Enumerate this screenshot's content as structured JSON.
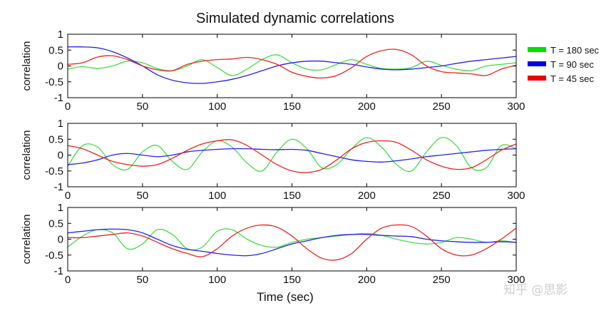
{
  "chart_data": {
    "type": "line",
    "title": "Simulated dynamic correlations",
    "xlabel": "Time (sec)",
    "ylabel": "correlation",
    "xlim": [
      0,
      300
    ],
    "ylim": [
      -1,
      1
    ],
    "xticks": [
      0,
      50,
      100,
      150,
      200,
      250,
      300
    ],
    "yticks": [
      -1,
      -0.5,
      0,
      0.5,
      1
    ],
    "legend": {
      "placement": "right",
      "entries": [
        {
          "label": "T  = 180 sec",
          "color": "#00e000"
        },
        {
          "label": "T  = 90 sec",
          "color": "#0000ee"
        },
        {
          "label": "T  = 45 sec",
          "color": "#ee0000"
        }
      ]
    },
    "panels": [
      {
        "series": [
          {
            "name": "T  = 180 sec",
            "color": "#44dd44",
            "x": [
              0,
              10,
              20,
              30,
              40,
              50,
              60,
              70,
              80,
              90,
              100,
              110,
              120,
              130,
              140,
              150,
              160,
              170,
              180,
              190,
              200,
              210,
              220,
              230,
              240,
              250,
              260,
              270,
              280,
              290,
              300
            ],
            "y": [
              -0.1,
              -0.02,
              -0.08,
              0.0,
              0.15,
              0.1,
              -0.08,
              -0.15,
              0.0,
              0.2,
              -0.05,
              -0.3,
              -0.1,
              0.2,
              0.35,
              0.1,
              -0.1,
              -0.12,
              0.05,
              0.2,
              0.05,
              -0.08,
              -0.1,
              -0.05,
              0.15,
              0.02,
              -0.1,
              -0.15,
              0.0,
              0.05,
              0.1
            ]
          },
          {
            "name": "T  = 90 sec",
            "color": "#2222ee",
            "x": [
              0,
              10,
              20,
              30,
              40,
              50,
              60,
              70,
              80,
              90,
              100,
              110,
              120,
              130,
              140,
              150,
              160,
              170,
              180,
              190,
              200,
              210,
              220,
              230,
              240,
              250,
              260,
              270,
              280,
              290,
              300
            ],
            "y": [
              0.6,
              0.6,
              0.57,
              0.45,
              0.25,
              0.0,
              -0.28,
              -0.45,
              -0.53,
              -0.55,
              -0.5,
              -0.42,
              -0.3,
              -0.15,
              0.0,
              0.1,
              0.15,
              0.15,
              0.1,
              0.05,
              -0.03,
              -0.1,
              -0.12,
              -0.1,
              -0.05,
              0.0,
              0.08,
              0.15,
              0.2,
              0.25,
              0.3
            ]
          },
          {
            "name": "T  = 45 sec",
            "color": "#ee2222",
            "x": [
              0,
              10,
              20,
              30,
              40,
              50,
              60,
              70,
              80,
              90,
              100,
              110,
              120,
              130,
              140,
              150,
              160,
              170,
              180,
              190,
              200,
              210,
              220,
              230,
              240,
              250,
              260,
              270,
              280,
              290,
              300
            ],
            "y": [
              0.05,
              0.1,
              0.28,
              0.32,
              0.2,
              0.0,
              -0.12,
              -0.15,
              0.05,
              0.15,
              0.2,
              0.22,
              0.27,
              0.2,
              0.05,
              -0.2,
              -0.33,
              -0.38,
              -0.3,
              -0.05,
              0.3,
              0.48,
              0.52,
              0.35,
              0.0,
              -0.18,
              -0.22,
              -0.25,
              -0.3,
              -0.1,
              0.02
            ]
          }
        ]
      },
      {
        "series": [
          {
            "name": "T  = 180 sec",
            "color": "#44dd44",
            "x": [
              0,
              10,
              20,
              30,
              40,
              50,
              60,
              70,
              80,
              90,
              100,
              110,
              120,
              130,
              140,
              150,
              160,
              170,
              180,
              190,
              200,
              210,
              220,
              230,
              240,
              250,
              260,
              270,
              280,
              290,
              300
            ],
            "y": [
              -0.35,
              0.3,
              0.25,
              -0.3,
              -0.45,
              0.1,
              0.3,
              -0.2,
              -0.45,
              0.1,
              0.45,
              0.25,
              -0.25,
              -0.5,
              0.1,
              0.5,
              0.2,
              -0.4,
              -0.3,
              0.2,
              0.55,
              0.25,
              -0.3,
              -0.5,
              0.1,
              0.55,
              0.3,
              -0.4,
              -0.4,
              0.3,
              0.2
            ]
          },
          {
            "name": "T  = 90 sec",
            "color": "#2222ee",
            "x": [
              0,
              10,
              20,
              30,
              40,
              50,
              60,
              70,
              80,
              90,
              100,
              110,
              120,
              130,
              140,
              150,
              160,
              170,
              180,
              190,
              200,
              210,
              220,
              230,
              240,
              250,
              260,
              270,
              280,
              290,
              300
            ],
            "y": [
              -0.3,
              -0.25,
              -0.15,
              0.0,
              0.05,
              0.0,
              -0.05,
              0.0,
              0.1,
              0.15,
              0.18,
              0.2,
              0.2,
              0.18,
              0.17,
              0.18,
              0.15,
              0.05,
              -0.05,
              -0.15,
              -0.2,
              -0.22,
              -0.18,
              -0.12,
              -0.05,
              0.0,
              0.05,
              0.1,
              0.15,
              0.18,
              0.2
            ]
          },
          {
            "name": "T  = 45 sec",
            "color": "#ee2222",
            "x": [
              0,
              10,
              20,
              30,
              40,
              50,
              60,
              70,
              80,
              90,
              100,
              110,
              120,
              130,
              140,
              150,
              160,
              170,
              180,
              190,
              200,
              210,
              220,
              230,
              240,
              250,
              260,
              270,
              280,
              290,
              300
            ],
            "y": [
              0.3,
              0.2,
              0.0,
              -0.2,
              -0.3,
              -0.35,
              -0.3,
              -0.1,
              0.15,
              0.35,
              0.45,
              0.48,
              0.3,
              0.0,
              -0.3,
              -0.5,
              -0.55,
              -0.45,
              -0.15,
              0.2,
              0.4,
              0.45,
              0.4,
              0.15,
              -0.15,
              -0.35,
              -0.45,
              -0.4,
              -0.15,
              0.15,
              0.35
            ]
          }
        ]
      },
      {
        "series": [
          {
            "name": "T  = 180 sec",
            "color": "#44dd44",
            "x": [
              0,
              10,
              20,
              30,
              40,
              50,
              60,
              70,
              80,
              90,
              100,
              110,
              120,
              130,
              140,
              150,
              160,
              170,
              180,
              190,
              200,
              210,
              220,
              230,
              240,
              250,
              260,
              270,
              280,
              290,
              300
            ],
            "y": [
              -0.25,
              0.1,
              0.3,
              0.2,
              -0.3,
              -0.15,
              0.3,
              0.15,
              -0.3,
              -0.25,
              0.25,
              0.3,
              0.0,
              -0.2,
              -0.25,
              -0.1,
              0.0,
              0.05,
              0.1,
              0.15,
              0.18,
              0.12,
              0.0,
              -0.1,
              -0.15,
              -0.1,
              0.05,
              0.0,
              -0.1,
              -0.05,
              -0.1
            ]
          },
          {
            "name": "T  = 90 sec",
            "color": "#2222ee",
            "x": [
              0,
              10,
              20,
              30,
              40,
              50,
              60,
              70,
              80,
              90,
              100,
              110,
              120,
              130,
              140,
              150,
              160,
              170,
              180,
              190,
              200,
              210,
              220,
              230,
              240,
              250,
              260,
              270,
              280,
              290,
              300
            ],
            "y": [
              0.2,
              0.25,
              0.3,
              0.32,
              0.3,
              0.2,
              0.0,
              -0.2,
              -0.32,
              -0.38,
              -0.45,
              -0.5,
              -0.52,
              -0.45,
              -0.3,
              -0.15,
              -0.05,
              0.05,
              0.12,
              0.15,
              0.15,
              0.12,
              0.1,
              0.08,
              0.0,
              -0.05,
              -0.08,
              -0.1,
              -0.1,
              -0.08,
              -0.1
            ]
          },
          {
            "name": "T  = 45 sec",
            "color": "#ee2222",
            "x": [
              0,
              10,
              20,
              30,
              40,
              50,
              60,
              70,
              80,
              90,
              100,
              110,
              120,
              130,
              140,
              150,
              160,
              170,
              180,
              190,
              200,
              210,
              220,
              230,
              240,
              250,
              260,
              270,
              280,
              290,
              300
            ],
            "y": [
              0.05,
              0.05,
              0.1,
              0.15,
              0.2,
              0.1,
              -0.1,
              -0.3,
              -0.45,
              -0.55,
              -0.3,
              0.1,
              0.35,
              0.45,
              0.38,
              0.1,
              -0.3,
              -0.6,
              -0.65,
              -0.45,
              0.0,
              0.35,
              0.45,
              0.4,
              0.1,
              -0.3,
              -0.5,
              -0.5,
              -0.3,
              0.0,
              0.35
            ]
          }
        ]
      }
    ]
  },
  "watermark": "知乎 @思影"
}
